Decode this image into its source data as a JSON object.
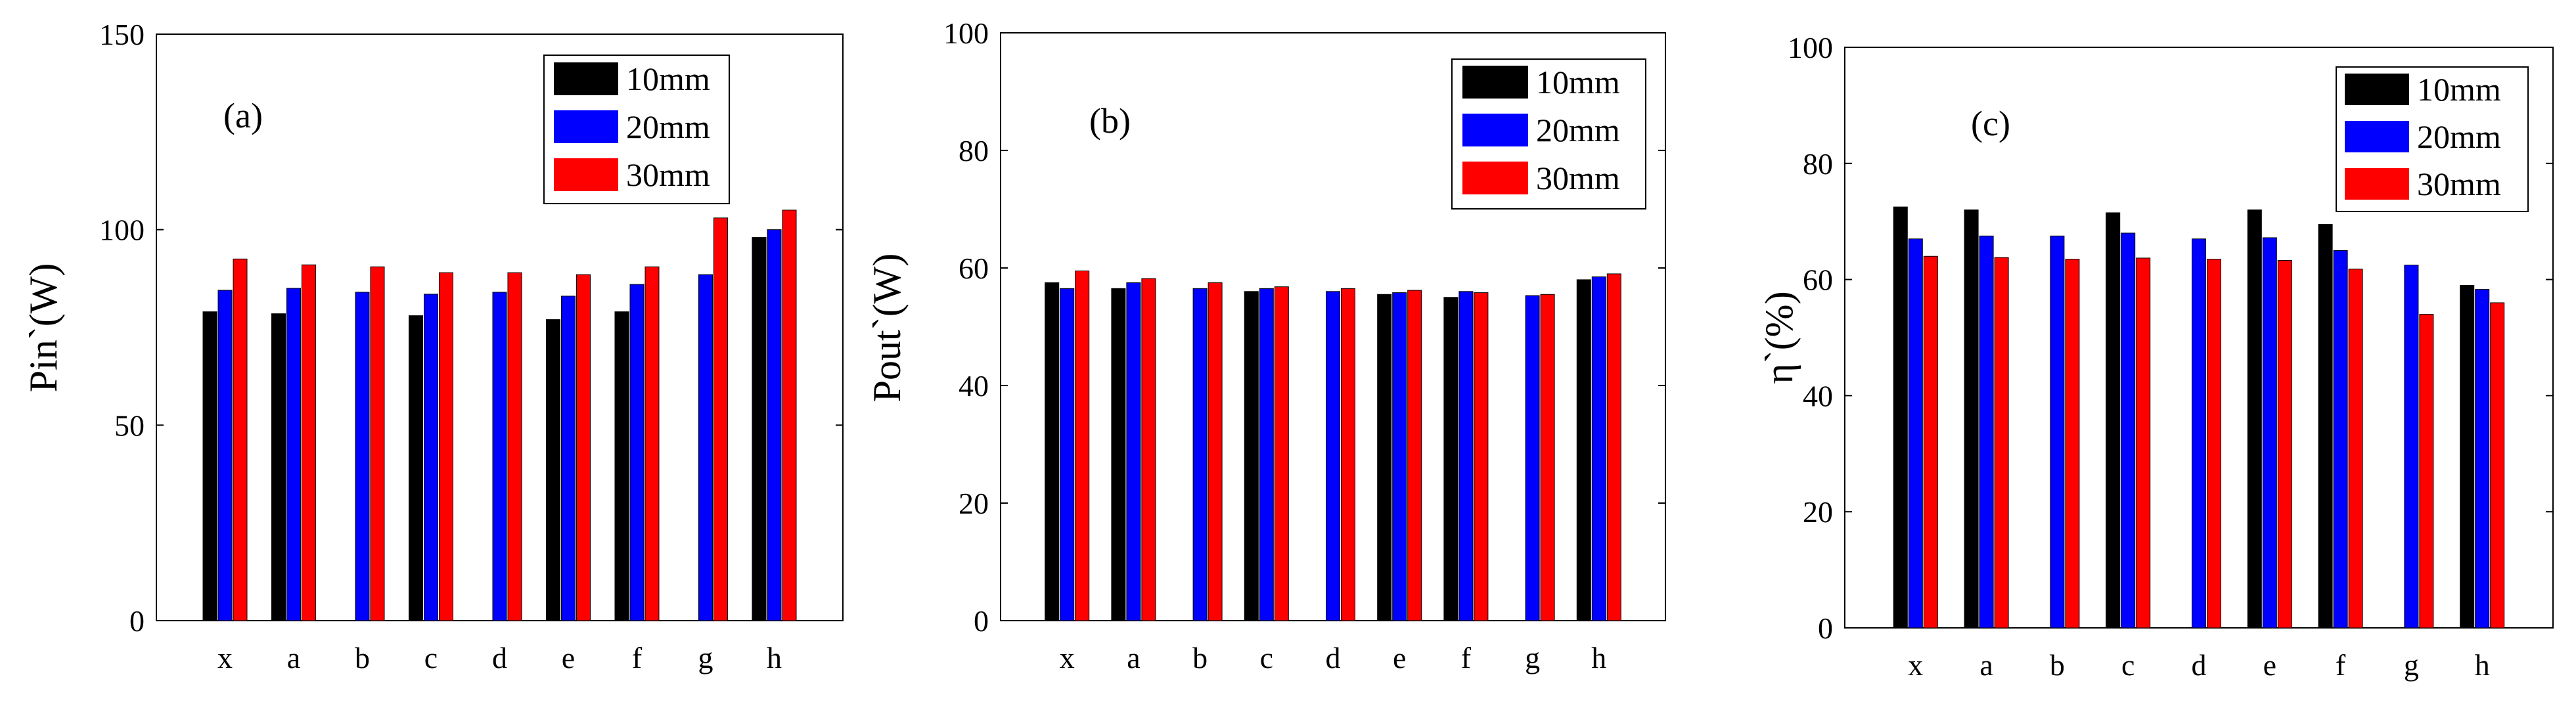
{
  "colors": {
    "s10": "#000000",
    "s20": "#0000ff",
    "s30": "#ff0000"
  },
  "chart_data": [
    {
      "type": "bar",
      "panel_label": "(a)",
      "ylabel": "Pin`(W)",
      "ylim": [
        0,
        150
      ],
      "yticks": [
        "0",
        "50",
        "100",
        "150"
      ],
      "categories": [
        "x",
        "a",
        "b",
        "c",
        "d",
        "e",
        "f",
        "g",
        "h"
      ],
      "legend_position": "top-right",
      "series": [
        {
          "name": "10mm",
          "values": [
            79,
            78.5,
            null,
            78,
            null,
            77,
            79,
            null,
            98
          ]
        },
        {
          "name": "20mm",
          "values": [
            84.5,
            85,
            84,
            83.5,
            84,
            83,
            86,
            88.5,
            100
          ]
        },
        {
          "name": "30mm",
          "values": [
            92.5,
            91,
            90.5,
            89,
            89,
            88.5,
            90.5,
            103,
            105
          ]
        }
      ]
    },
    {
      "type": "bar",
      "panel_label": "(b)",
      "ylabel": "Pout`(W)",
      "ylim": [
        0,
        100
      ],
      "yticks": [
        "0",
        "20",
        "40",
        "60",
        "80",
        "100"
      ],
      "categories": [
        "x",
        "a",
        "b",
        "c",
        "d",
        "e",
        "f",
        "g",
        "h"
      ],
      "legend_position": "top-right",
      "series": [
        {
          "name": "10mm",
          "values": [
            57.5,
            56.5,
            null,
            56,
            null,
            55.5,
            55,
            null,
            58
          ]
        },
        {
          "name": "20mm",
          "values": [
            56.5,
            57.5,
            56.5,
            56.5,
            56,
            55.8,
            56,
            55.3,
            58.5
          ]
        },
        {
          "name": "30mm",
          "values": [
            59.5,
            58.2,
            57.5,
            56.8,
            56.5,
            56.2,
            55.8,
            55.5,
            59
          ]
        }
      ]
    },
    {
      "type": "bar",
      "panel_label": "(c)",
      "ylabel": "η`(%)",
      "ylim": [
        0,
        100
      ],
      "yticks": [
        "0",
        "20",
        "40",
        "60",
        "80",
        "100"
      ],
      "categories": [
        "x",
        "a",
        "b",
        "c",
        "d",
        "e",
        "f",
        "g",
        "h"
      ],
      "legend_position": "top-right",
      "series": [
        {
          "name": "10mm",
          "values": [
            72.5,
            72,
            null,
            71.5,
            null,
            72,
            69.5,
            null,
            59
          ]
        },
        {
          "name": "20mm",
          "values": [
            67,
            67.5,
            67.5,
            68,
            67,
            67.2,
            65,
            62.5,
            58.3
          ]
        },
        {
          "name": "30mm",
          "values": [
            64,
            63.8,
            63.5,
            63.7,
            63.5,
            63.3,
            61.8,
            54,
            56
          ]
        }
      ]
    }
  ]
}
